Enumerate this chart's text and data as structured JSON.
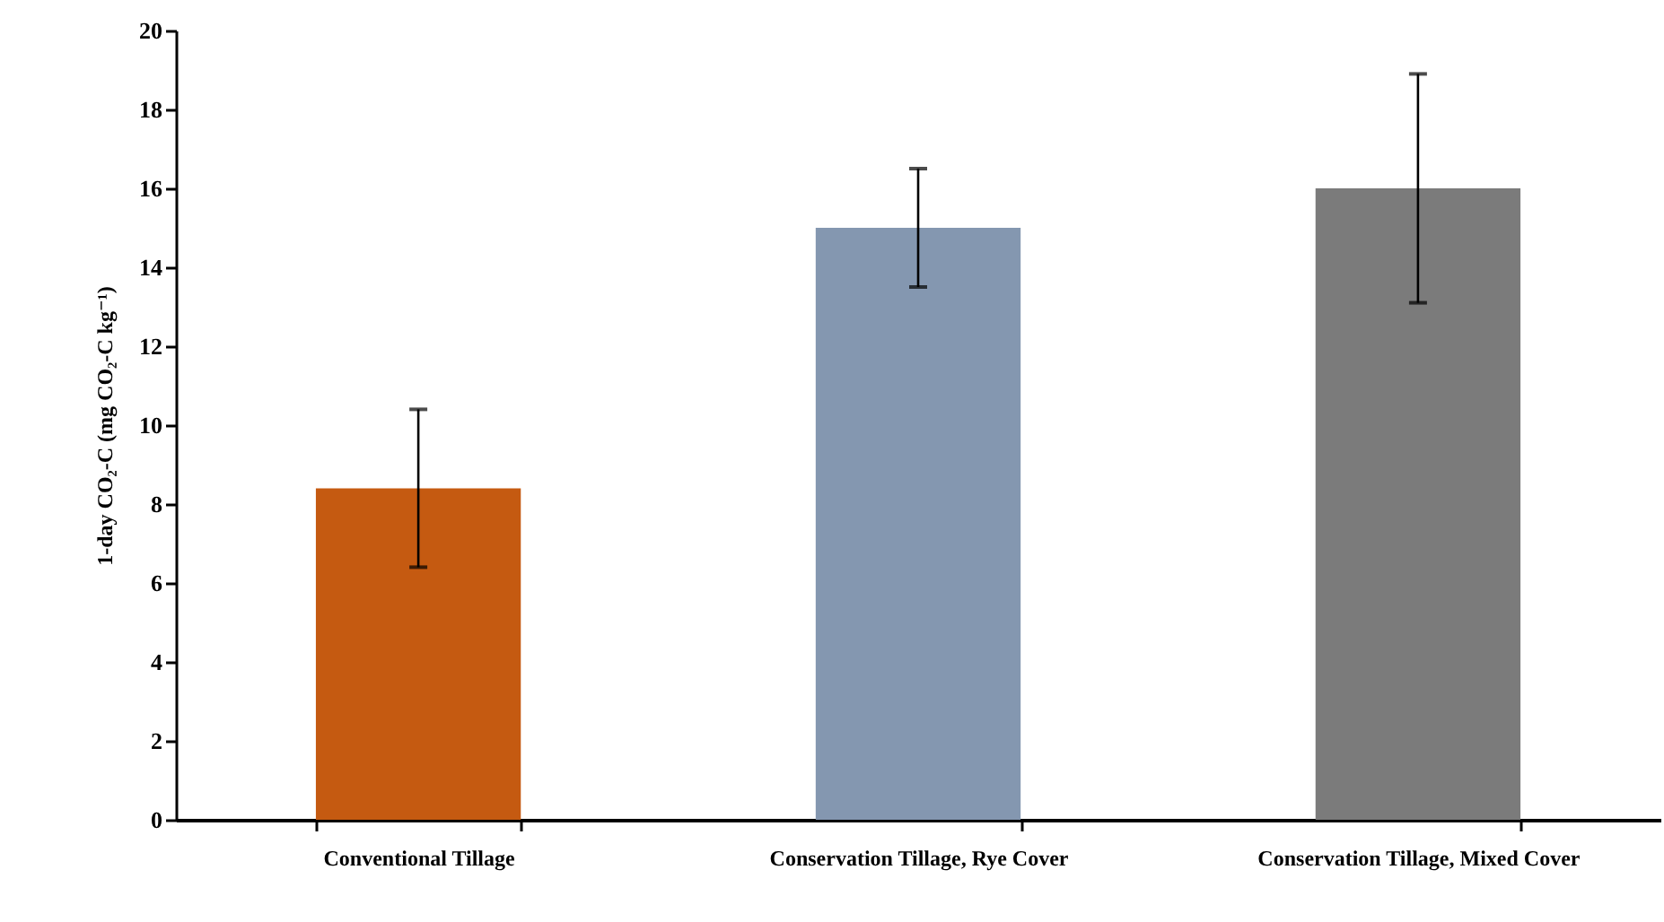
{
  "chart_data": {
    "type": "bar",
    "ylabel": "1-day CO₂-C (mg CO₂-C kg⁻¹)",
    "categories": [
      "Conventional Tillage",
      "Conservation Tillage, Rye Cover",
      "Conservation Tillage, Mixed Cover"
    ],
    "values": [
      8.4,
      15.0,
      16.0
    ],
    "colors": [
      "#c55a11",
      "#8497b0",
      "#7b7b7b"
    ],
    "errors": [
      2.0,
      1.5,
      2.9
    ],
    "ylim": [
      0,
      20
    ],
    "yticks": [
      0,
      2,
      4,
      6,
      8,
      10,
      12,
      14,
      16,
      18,
      20
    ],
    "grid": false
  }
}
